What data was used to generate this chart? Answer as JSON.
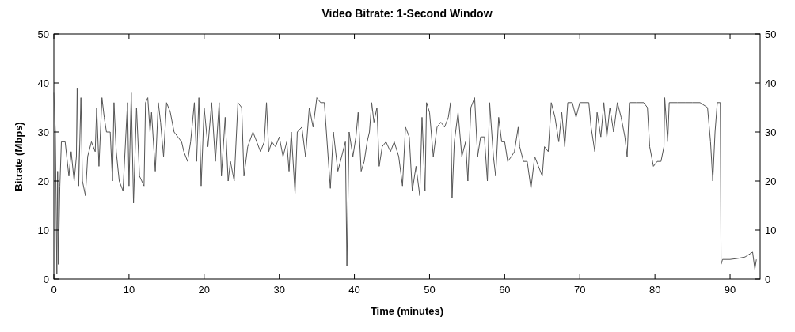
{
  "chart_data": {
    "type": "line",
    "title": "Video Bitrate: 1-Second Window",
    "xlabel": "Time (minutes)",
    "ylabel": "Bitrate (Mbps)",
    "xlim": [
      0,
      94
    ],
    "xticks": [
      0,
      10,
      20,
      30,
      40,
      50,
      60,
      70,
      80,
      90
    ],
    "ylim": [
      0,
      50
    ],
    "yticks": [
      0,
      10,
      20,
      30,
      40,
      50
    ],
    "y2lim": [
      0,
      50
    ],
    "y2ticks": [
      0,
      10,
      20,
      30,
      40,
      50
    ],
    "grid": false,
    "series": [
      {
        "color": "#555555",
        "x": [
          0,
          0.2,
          0.4,
          0.5,
          0.6,
          0.8,
          1,
          1.5,
          2,
          2.3,
          2.7,
          3,
          3.1,
          3.3,
          3.6,
          3.8,
          4.2,
          4.5,
          5,
          5.5,
          5.7,
          6,
          6.4,
          6.7,
          7,
          7.5,
          7.8,
          8,
          8.3,
          8.7,
          9.2,
          9.8,
          10,
          10.3,
          10.6,
          11,
          11.4,
          12,
          12.2,
          12.5,
          12.8,
          13,
          13.5,
          13.9,
          14.2,
          14.6,
          15,
          15.5,
          16,
          16.5,
          17,
          17.3,
          17.8,
          18.2,
          18.7,
          19,
          19.3,
          19.6,
          20,
          20.5,
          21,
          21.5,
          22,
          22.3,
          22.8,
          23.2,
          23.5,
          24,
          24.5,
          25,
          25.3,
          25.8,
          26.5,
          27,
          27.5,
          28,
          28.3,
          28.6,
          29,
          29.5,
          30,
          30.5,
          31,
          31.3,
          31.6,
          32.1,
          32.4,
          33,
          33.5,
          34,
          34.5,
          35,
          35.5,
          36,
          36.5,
          36.8,
          37.2,
          37.8,
          38.3,
          38.8,
          39,
          39.3,
          39.8,
          40.2,
          40.5,
          40.9,
          41.3,
          41.7,
          42,
          42.3,
          42.6,
          43,
          43.3,
          43.7,
          44.2,
          44.8,
          45.3,
          45.9,
          46.4,
          46.8,
          47.3,
          47.7,
          48.2,
          48.7,
          49,
          49.4,
          49.6,
          50,
          50.5,
          51,
          51.5,
          52,
          52.5,
          52.8,
          53,
          53.3,
          53.8,
          54.3,
          54.8,
          55.1,
          55.5,
          56,
          56.4,
          56.8,
          57.3,
          57.7,
          58,
          58.5,
          58.8,
          59.2,
          59.6,
          60,
          60.4,
          60.9,
          61.3,
          61.8,
          62,
          62.5,
          63,
          63.5,
          64,
          64.5,
          65,
          65.3,
          65.8,
          66.2,
          66.7,
          67.2,
          67.6,
          68,
          68.4,
          69,
          69.5,
          70,
          70.5,
          71.2,
          71.5,
          72,
          72.3,
          72.8,
          73.2,
          73.6,
          74,
          74.5,
          75,
          75.5,
          76,
          76.3,
          76.6,
          77.5,
          78.5,
          79,
          79.3,
          79.8,
          80.3,
          80.8,
          81.2,
          81.3,
          81.7,
          81.9,
          83,
          84,
          85,
          86,
          87,
          87.4,
          87.7,
          88,
          88.3,
          88.7,
          88.8,
          89,
          90,
          91,
          92,
          93,
          93.3,
          93.5
        ],
        "values": [
          38,
          30,
          1,
          22,
          3,
          19,
          28,
          28,
          21,
          26,
          20,
          25,
          39,
          19,
          37,
          20,
          17,
          25,
          28,
          26,
          35,
          23,
          37,
          33,
          30,
          30,
          20,
          36,
          26,
          20,
          18,
          36,
          19,
          38,
          15.5,
          35,
          21,
          19,
          36,
          37,
          30,
          34,
          22,
          36,
          32,
          25,
          36,
          34,
          30,
          29,
          28,
          26,
          24,
          28,
          36,
          24,
          37,
          19,
          35,
          27,
          36,
          24,
          36,
          21,
          33,
          20,
          24,
          20,
          36,
          35,
          21,
          27,
          30,
          28,
          26,
          28,
          36,
          26,
          28,
          27,
          29,
          25,
          28,
          22,
          30,
          17.5,
          30,
          31,
          25,
          35,
          31,
          37,
          36,
          36,
          25,
          18.5,
          30,
          22,
          25,
          28,
          2.6,
          30,
          25,
          29,
          34,
          22,
          24,
          28,
          30,
          36,
          32,
          35,
          23,
          27,
          28,
          26,
          28,
          25,
          19,
          31,
          29,
          18,
          23,
          17,
          33,
          18,
          36,
          34,
          25,
          31,
          32,
          31,
          33,
          36,
          16.5,
          28,
          34,
          25,
          28,
          20,
          35,
          37,
          25,
          29,
          29,
          20,
          36,
          25,
          21,
          33,
          28,
          28,
          24,
          25,
          26,
          31,
          27,
          24,
          24,
          18.5,
          25,
          23,
          21,
          27,
          26,
          36,
          33,
          28,
          34,
          27,
          36,
          36,
          33,
          36,
          36,
          36,
          31,
          26,
          34,
          29,
          36,
          29,
          35,
          30,
          36,
          33,
          29,
          25,
          36,
          36,
          36,
          35,
          27,
          23,
          24,
          24,
          27,
          37,
          28,
          36,
          36,
          36,
          36,
          36,
          35,
          28,
          20,
          30,
          36,
          36,
          3,
          4,
          4,
          4.2,
          4.5,
          5.5,
          2,
          4
        ]
      }
    ]
  }
}
